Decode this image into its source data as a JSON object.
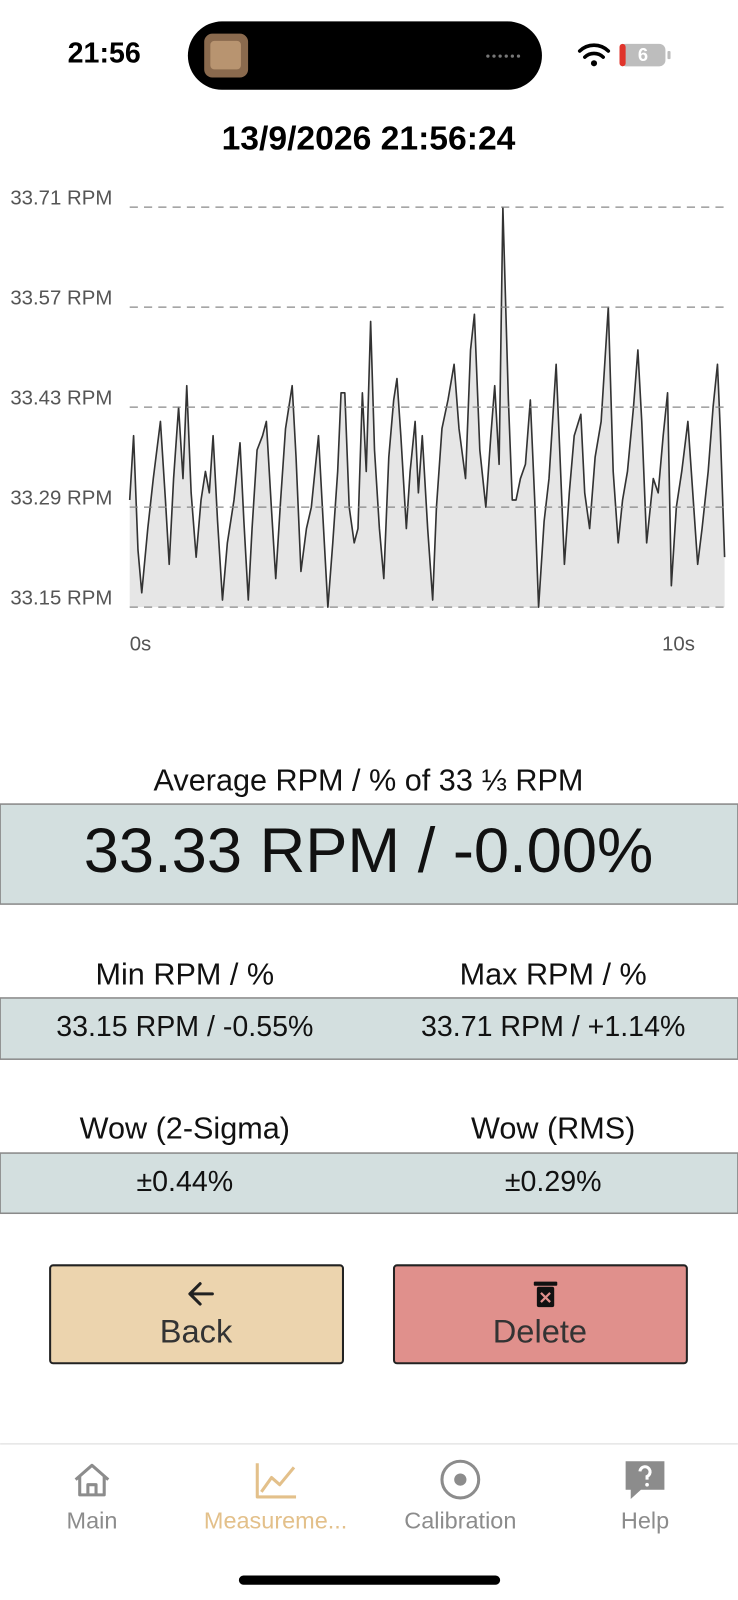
{
  "status_bar": {
    "time": "21:56",
    "battery": "6"
  },
  "header": {
    "title": "13/9/2026 21:56:24"
  },
  "chart_data": {
    "type": "line",
    "x": [
      0,
      0.07,
      0.15,
      0.22,
      0.33,
      0.43,
      0.56,
      0.65,
      0.72,
      0.8,
      0.89,
      0.97,
      1.04,
      1.12,
      1.21,
      1.3,
      1.38,
      1.45,
      1.52,
      1.6,
      1.69,
      1.78,
      1.9,
      2.01,
      2.08,
      2.16,
      2.23,
      2.32,
      2.42,
      2.49,
      2.58,
      2.66,
      2.75,
      2.84,
      2.96,
      3.03,
      3.12,
      3.22,
      3.31,
      3.44,
      3.51,
      3.61,
      3.7,
      3.79,
      3.85,
      3.92,
      4.0,
      4.09,
      4.16,
      4.24,
      4.31,
      4.39,
      4.46,
      4.55,
      4.63,
      4.72,
      4.81,
      4.87,
      4.94,
      5.04,
      5.11,
      5.2,
      5.26,
      5.33,
      5.43,
      5.52,
      5.59,
      5.69,
      5.8,
      5.91,
      6.0,
      6.12,
      6.21,
      6.28,
      6.38,
      6.49,
      6.58,
      6.65,
      6.73,
      6.8,
      6.9,
      6.97,
      7.04,
      7.12,
      7.21,
      7.3,
      7.38,
      7.45,
      7.55,
      7.64,
      7.77,
      7.84,
      7.92,
      8.01,
      8.1,
      8.22,
      8.29,
      8.38,
      8.48,
      8.59,
      8.72,
      8.81,
      8.9,
      8.98,
      9.07,
      9.18,
      9.26,
      9.33,
      9.42,
      9.54,
      9.63,
      9.72,
      9.8,
      9.87,
      9.96,
      10.06,
      10.17,
      10.26,
      10.35,
      10.43,
      10.54,
      10.63,
      10.71,
      10.76,
      10.84
    ],
    "series": [
      {
        "color": "#333333",
        "fill": "#e6e6e6",
        "values": [
          33.3,
          33.39,
          33.23,
          33.17,
          33.26,
          33.33,
          33.41,
          33.3,
          33.21,
          33.33,
          33.43,
          33.33,
          33.46,
          33.31,
          33.22,
          33.3,
          33.34,
          33.31,
          33.39,
          33.27,
          33.16,
          33.24,
          33.3,
          33.38,
          33.27,
          33.16,
          33.26,
          33.37,
          33.39,
          33.41,
          33.29,
          33.19,
          33.3,
          33.4,
          33.46,
          33.36,
          33.2,
          33.26,
          33.29,
          33.39,
          33.29,
          33.15,
          33.24,
          33.34,
          33.45,
          33.45,
          33.29,
          33.24,
          33.26,
          33.45,
          33.34,
          33.55,
          33.37,
          33.26,
          33.19,
          33.36,
          33.44,
          33.47,
          33.39,
          33.26,
          33.34,
          33.41,
          33.31,
          33.39,
          33.26,
          33.16,
          33.29,
          33.4,
          33.44,
          33.49,
          33.4,
          33.33,
          33.51,
          33.56,
          33.37,
          33.29,
          33.39,
          33.46,
          33.35,
          33.71,
          33.44,
          33.3,
          33.3,
          33.33,
          33.35,
          33.44,
          33.3,
          33.15,
          33.27,
          33.33,
          33.49,
          33.36,
          33.21,
          33.31,
          33.39,
          33.42,
          33.31,
          33.26,
          33.36,
          33.41,
          33.57,
          33.34,
          33.24,
          33.3,
          33.34,
          33.43,
          33.51,
          33.41,
          33.24,
          33.33,
          33.31,
          33.39,
          33.45,
          33.18,
          33.29,
          33.34,
          33.41,
          33.31,
          33.21,
          33.26,
          33.34,
          33.43,
          33.49,
          33.4,
          33.22
        ]
      }
    ],
    "xlim": [
      0,
      10.84
    ],
    "ylim": [
      33.15,
      33.75
    ],
    "xticks": [
      {
        "value": 0,
        "label": "0s"
      },
      {
        "value": 10,
        "label": "10s"
      }
    ],
    "yticks": [
      {
        "value": 33.15,
        "label": "33.15 RPM"
      },
      {
        "value": 33.29,
        "label": "33.29 RPM"
      },
      {
        "value": 33.43,
        "label": "33.43 RPM"
      },
      {
        "value": 33.57,
        "label": "33.57 RPM"
      },
      {
        "value": 33.71,
        "label": "33.71 RPM"
      }
    ],
    "grid": true
  },
  "stats": {
    "average": {
      "label": "Average RPM / % of 33 ⅓ RPM",
      "value": "33.33 RPM / -0.00%"
    },
    "min": {
      "label": "Min RPM / %",
      "value": "33.15 RPM / -0.55%"
    },
    "max": {
      "label": "Max RPM / %",
      "value": "33.71 RPM / +1.14%"
    },
    "wow_2sigma": {
      "label": "Wow (2-Sigma)",
      "value": "±0.44%"
    },
    "wow_rms": {
      "label": "Wow (RMS)",
      "value": "±0.29%"
    }
  },
  "buttons": {
    "back": "Back",
    "delete": "Delete"
  },
  "tab_bar": {
    "items": [
      "Main",
      "Measureme...",
      "Calibration",
      "Help"
    ]
  }
}
